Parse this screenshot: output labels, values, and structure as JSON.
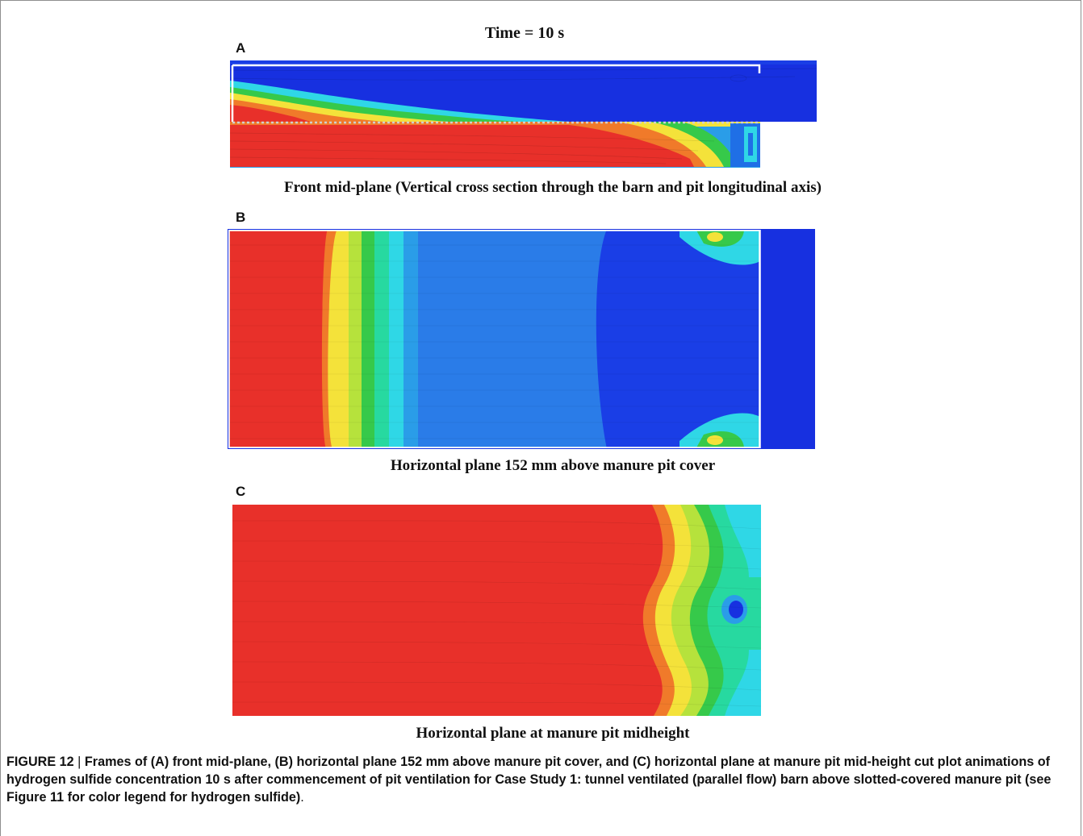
{
  "figure": {
    "time_label": "Time = 10 s",
    "panels": [
      {
        "letter": "A",
        "caption": "Front mid-plane (Vertical cross section through the barn and pit longitudinal axis)"
      },
      {
        "letter": "B",
        "caption": "Horizontal plane 152 mm above manure pit cover"
      },
      {
        "letter": "C",
        "caption": "Horizontal plane at manure pit midheight"
      }
    ],
    "colors": {
      "high": "#e8302a",
      "orange": "#f07a2a",
      "yellow": "#f4e23a",
      "yellow_green": "#b6e23c",
      "green": "#36c94a",
      "aqua_green": "#27d9a0",
      "cyan": "#2fd7e6",
      "light_blue": "#2a9de8",
      "mid_blue": "#1f6fe6",
      "low": "#1730e0"
    }
  },
  "caption": {
    "label": "FIGURE 12",
    "separator": " | ",
    "text": "Frames of (A) front mid-plane, (B) horizontal plane 152 mm above manure pit cover, and (C) horizontal plane at manure pit mid-height cut plot animations of hydrogen sulfide concentration 10 s after commencement of pit ventilation for Case Study 1: tunnel ventilated (parallel flow) barn above slotted-covered manure pit (see Figure 11 for color legend for hydrogen sulfide)",
    "tail": "."
  }
}
